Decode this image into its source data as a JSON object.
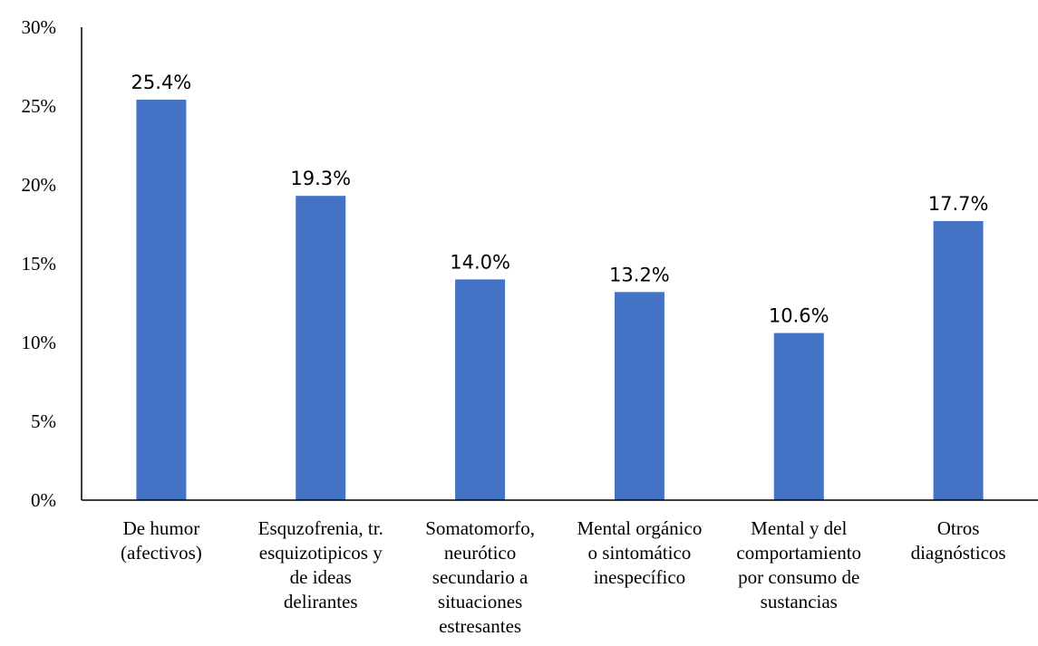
{
  "colors": {
    "bar": "#4472C4",
    "axis": "#000000"
  },
  "chart_data": {
    "type": "bar",
    "title": "",
    "xlabel": "",
    "ylabel": "",
    "ylim": [
      0,
      30
    ],
    "y_ticks": [
      "0%",
      "5%",
      "10%",
      "15%",
      "20%",
      "25%",
      "30%"
    ],
    "grid": false,
    "categories": [
      [
        "De humor",
        "(afectivos)"
      ],
      [
        "Esquzofrenia, tr.",
        "esquizotipicos y",
        "de ideas",
        "delirantes"
      ],
      [
        "Somatomorfo,",
        "neurótico",
        "secundario a",
        "situaciones",
        "estresantes"
      ],
      [
        "Mental orgánico",
        "o sintomático",
        "inespecífico"
      ],
      [
        "Mental y del",
        "comportamiento",
        "por consumo de",
        "sustancias"
      ],
      [
        "Otros",
        "diagnósticos"
      ]
    ],
    "values": [
      25.4,
      19.3,
      14.0,
      13.2,
      10.6,
      17.7
    ],
    "data_labels": [
      "25.4%",
      "19.3%",
      "14.0%",
      "13.2%",
      "10.6%",
      "17.7%"
    ]
  }
}
